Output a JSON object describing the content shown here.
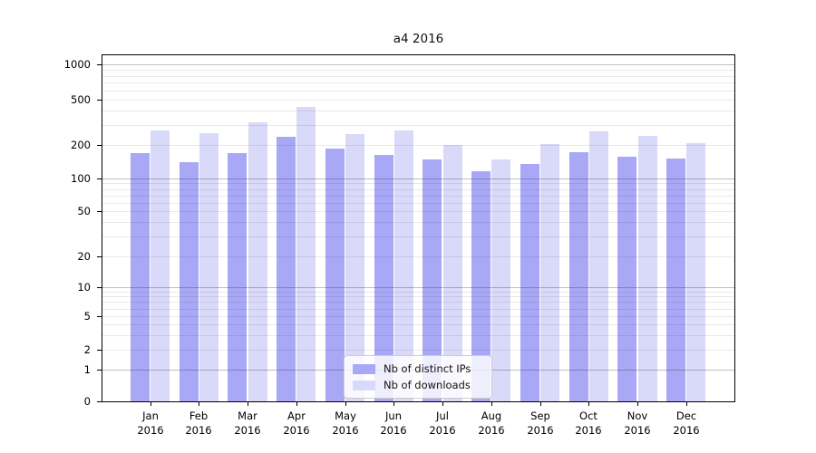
{
  "chart_data": {
    "type": "bar",
    "title": "a4 2016",
    "categories": [
      "Jan",
      "Feb",
      "Mar",
      "Apr",
      "May",
      "Jun",
      "Jul",
      "Aug",
      "Sep",
      "Oct",
      "Nov",
      "Dec"
    ],
    "category_year": "2016",
    "series": [
      {
        "name": "Nb of distinct IPs",
        "color": "#a8a8f6",
        "values": [
          170,
          141,
          170,
          238,
          185,
          164,
          147,
          117,
          134,
          173,
          158,
          152
        ]
      },
      {
        "name": "Nb of downloads",
        "color": "#d9d9f9",
        "values": [
          266,
          252,
          316,
          430,
          249,
          268,
          200,
          147,
          202,
          261,
          240,
          206
        ]
      }
    ],
    "xlabel": "",
    "ylabel": "",
    "yscale": "symlog",
    "y_ticks": [
      1000,
      500,
      200,
      100,
      50,
      20,
      10,
      5,
      2,
      1,
      0
    ],
    "ylim": [
      0,
      1200
    ],
    "grid": "both",
    "legend": {
      "position": "lower center",
      "labels": [
        "Nb of distinct IPs",
        "Nb of downloads"
      ]
    }
  }
}
